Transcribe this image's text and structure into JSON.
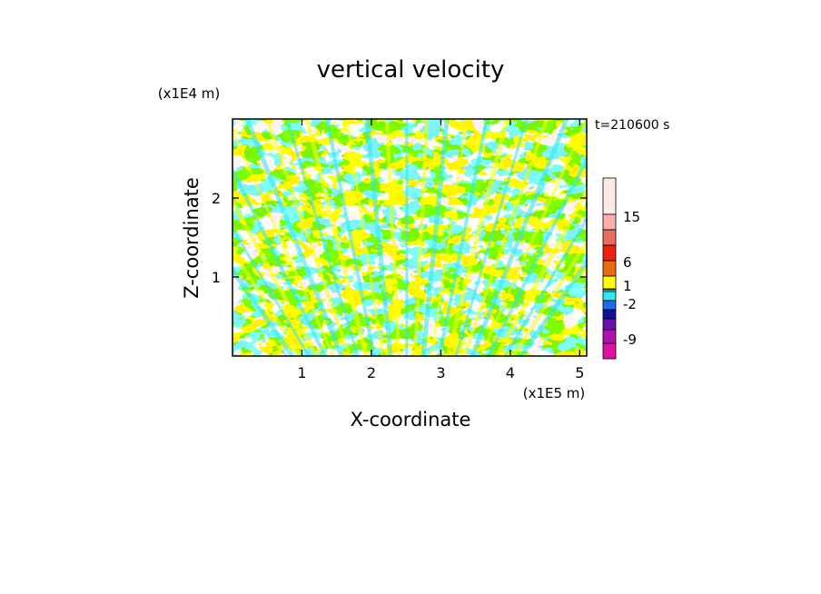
{
  "chart_data": {
    "type": "heatmap",
    "title": "vertical velocity",
    "xlabel": "X-coordinate",
    "ylabel": "Z-coordinate",
    "x_unit": "(x1E5 m)",
    "y_unit": "(x1E4 m)",
    "time_label": "t=210600 s",
    "x_ticks": [
      "1",
      "2",
      "3",
      "4",
      "5"
    ],
    "x_tick_values": [
      1,
      2,
      3,
      4,
      5
    ],
    "y_ticks": [
      "1",
      "2"
    ],
    "y_tick_values": [
      1,
      2
    ],
    "xlim": [
      0,
      5.1
    ],
    "ylim": [
      0,
      3.0
    ],
    "dominant_colors": {
      "negative": "#33E6F2",
      "positive": "#FFFF00"
    },
    "colorbar": {
      "labels": [
        "15",
        "6",
        "1",
        "-2",
        "-9"
      ],
      "label_values": [
        15,
        6,
        1,
        -2,
        -9
      ],
      "colors_top_to_bottom": [
        "#FDEAE6",
        "#F9B0A8",
        "#EE6B62",
        "#EE2010",
        "#E96B10",
        "#FFFF00",
        "#33E6F2",
        "#1E6BEB",
        "#1010A0",
        "#6A10B0",
        "#B012B0",
        "#E010A0"
      ]
    }
  }
}
